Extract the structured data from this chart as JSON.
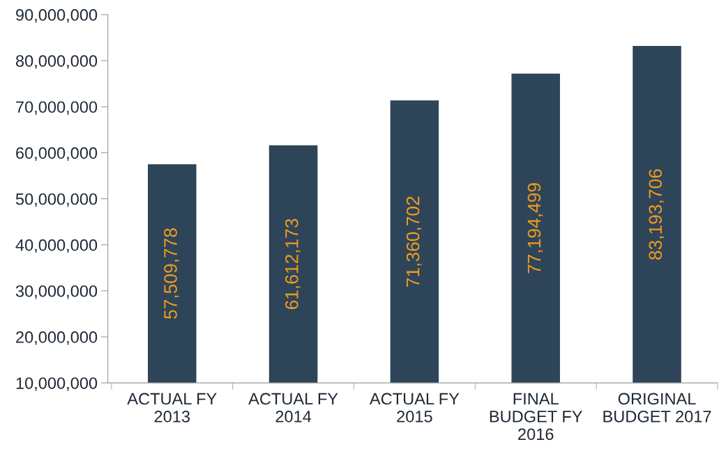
{
  "chart_data": {
    "type": "bar",
    "categories": [
      "ACTUAL FY\n2013",
      "ACTUAL FY\n2014",
      "ACTUAL FY\n2015",
      "FINAL\nBUDGET FY\n2016",
      "ORIGINAL\nBUDGET 2017"
    ],
    "values": [
      57509778,
      61612173,
      71360702,
      77194499,
      83193706
    ],
    "value_labels": [
      "57,509,778",
      "61,612,173",
      "71,360,702",
      "77,194,499",
      "83,193,706"
    ],
    "color": "#2e4559",
    "ylim": [
      10000000,
      90000000
    ],
    "yticks": [
      {
        "value": 10000000,
        "label": "10,000,000"
      },
      {
        "value": 20000000,
        "label": "20,000,000"
      },
      {
        "value": 30000000,
        "label": "30,000,000"
      },
      {
        "value": 40000000,
        "label": "40,000,000"
      },
      {
        "value": 50000000,
        "label": "50,000,000"
      },
      {
        "value": 60000000,
        "label": "60,000,000"
      },
      {
        "value": 70000000,
        "label": "70,000,000"
      },
      {
        "value": 80000000,
        "label": "80,000,000"
      },
      {
        "value": 90000000,
        "label": "90,000,000"
      }
    ],
    "grid": false
  }
}
